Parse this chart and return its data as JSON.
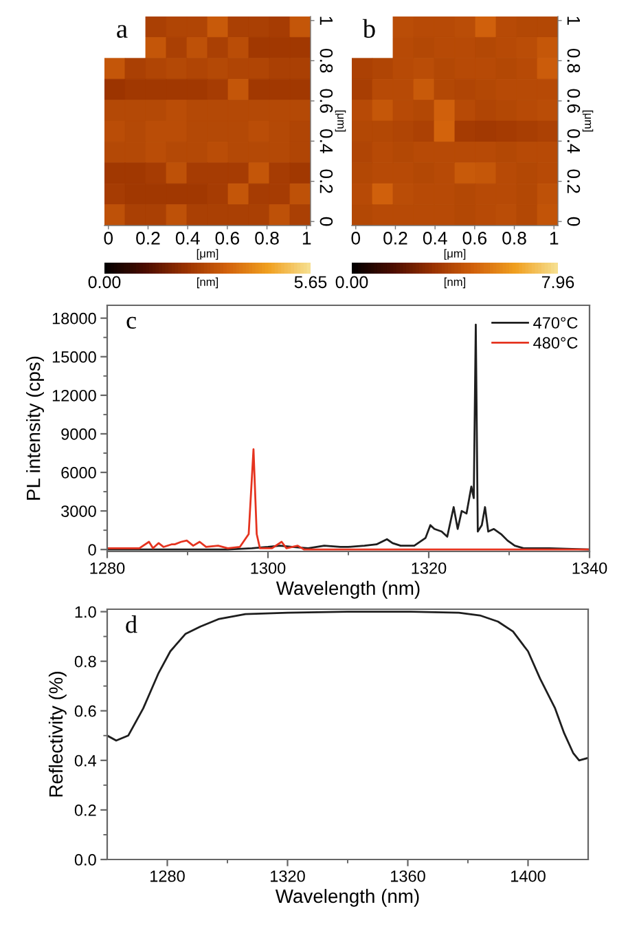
{
  "chart_data": [
    {
      "type": "heatmap",
      "title": "a",
      "xlabel": "[μm]",
      "ylabel": "[μm]",
      "clabel": "[nm]",
      "xlim": [
        -0.02,
        1.02
      ],
      "xticks": [
        0,
        0.2,
        0.4,
        0.6,
        0.8,
        1
      ],
      "ylim": [
        -0.02,
        1.02
      ],
      "yticks": [
        0,
        0.2,
        0.4,
        0.6,
        0.8,
        1
      ],
      "clim": [
        0,
        5.65
      ],
      "cticks": [
        {
          "value": 0,
          "label": "0.00"
        },
        5.65
      ],
      "cells": [
        [
          null,
          null,
          2.6,
          2.7,
          2.7,
          3.2,
          2.6,
          2.6,
          2.5,
          3.1
        ],
        [
          null,
          null,
          3.1,
          2.6,
          3.0,
          2.6,
          2.9,
          2.4,
          2.4,
          2.4
        ],
        [
          3.1,
          2.6,
          2.7,
          2.8,
          2.7,
          2.8,
          2.7,
          2.7,
          2.6,
          2.6
        ],
        [
          2.3,
          2.4,
          2.4,
          2.4,
          2.4,
          2.5,
          3.1,
          2.4,
          2.4,
          2.4
        ],
        [
          2.8,
          2.8,
          2.8,
          2.9,
          2.8,
          2.8,
          2.8,
          2.8,
          2.8,
          2.8
        ],
        [
          2.9,
          2.8,
          2.9,
          2.9,
          2.8,
          2.8,
          2.8,
          2.9,
          2.8,
          2.7
        ],
        [
          2.8,
          2.8,
          2.9,
          2.8,
          2.8,
          2.9,
          2.8,
          2.8,
          2.8,
          2.7
        ],
        [
          2.4,
          2.4,
          2.5,
          3.0,
          2.5,
          2.5,
          2.5,
          3.1,
          2.5,
          2.4
        ],
        [
          2.5,
          2.4,
          2.4,
          2.4,
          2.4,
          2.5,
          3.1,
          2.5,
          2.5,
          3.0
        ],
        [
          3.0,
          2.6,
          2.6,
          3.0,
          2.6,
          2.6,
          2.6,
          2.6,
          3.0,
          2.6
        ]
      ]
    },
    {
      "type": "heatmap",
      "title": "b",
      "xlabel": "[μm]",
      "ylabel": "[μm]",
      "clabel": "[nm]",
      "xlim": [
        -0.02,
        1.02
      ],
      "xticks": [
        0,
        0.2,
        0.4,
        0.6,
        0.8,
        1
      ],
      "ylim": [
        -0.02,
        1.02
      ],
      "yticks": [
        0,
        0.2,
        0.4,
        0.6,
        0.8,
        1
      ],
      "clim": [
        0,
        7.96
      ],
      "cticks": [
        {
          "value": 0,
          "label": "0.00"
        },
        7.96
      ],
      "cells": [
        [
          null,
          null,
          4.1,
          4.0,
          4.0,
          4.1,
          4.7,
          4.0,
          3.9,
          3.9
        ],
        [
          null,
          null,
          4.0,
          3.9,
          4.0,
          4.0,
          3.9,
          4.0,
          4.1,
          4.4
        ],
        [
          3.7,
          3.8,
          4.0,
          4.1,
          3.9,
          4.0,
          4.0,
          3.9,
          4.0,
          4.6
        ],
        [
          3.6,
          4.0,
          4.0,
          4.5,
          3.9,
          3.8,
          3.9,
          4.0,
          4.0,
          4.0
        ],
        [
          4.0,
          4.4,
          4.0,
          3.9,
          4.7,
          4.0,
          3.8,
          3.9,
          4.0,
          4.1
        ],
        [
          3.9,
          3.9,
          3.8,
          3.7,
          4.8,
          3.5,
          3.4,
          3.5,
          3.6,
          3.7
        ],
        [
          3.8,
          4.0,
          3.9,
          4.0,
          4.0,
          4.0,
          4.0,
          3.9,
          4.0,
          4.0
        ],
        [
          3.9,
          4.0,
          4.0,
          3.9,
          4.0,
          4.5,
          4.4,
          4.0,
          3.9,
          4.0
        ],
        [
          4.0,
          4.7,
          4.1,
          4.0,
          4.0,
          3.9,
          4.0,
          4.0,
          3.9,
          4.2
        ],
        [
          3.9,
          4.0,
          4.0,
          4.0,
          4.0,
          3.9,
          4.0,
          4.1,
          3.9,
          4.3
        ]
      ]
    },
    {
      "type": "line",
      "title": "c",
      "xlabel": "Wavelength (nm)",
      "ylabel": "PL intensity (cps)",
      "xlim": [
        1280,
        1340
      ],
      "xticks": [
        1280,
        {
          "value": 1290,
          "label": null
        },
        1300,
        {
          "value": 1310,
          "label": null
        },
        1320,
        {
          "value": 1330,
          "label": null
        },
        1340
      ],
      "ylim": [
        -150,
        19000
      ],
      "yticks": [
        0,
        {
          "value": 1500,
          "label": null
        },
        3000,
        {
          "value": 4500,
          "label": null
        },
        6000,
        {
          "value": 7500,
          "label": null
        },
        9000,
        {
          "value": 10500,
          "label": null
        },
        12000,
        {
          "value": 13500,
          "label": null
        },
        15000,
        {
          "value": 16500,
          "label": null
        },
        18000
      ],
      "legend": "top right",
      "series": [
        {
          "name": "470°C",
          "color": "#1e1e1e",
          "x": [
            1280,
            1285,
            1290,
            1295,
            1298,
            1300,
            1301.5,
            1303,
            1305,
            1307,
            1309,
            1310,
            1312,
            1313.5,
            1314.8,
            1315.5,
            1316.5,
            1318.2,
            1319.6,
            1320.2,
            1320.7,
            1321.6,
            1322.3,
            1323.1,
            1323.6,
            1324.1,
            1324.7,
            1325.3,
            1325.6,
            1325.85,
            1326.1,
            1326.6,
            1327,
            1327.4,
            1328.1,
            1329,
            1329.8,
            1330.7,
            1331.8,
            1335,
            1340
          ],
          "values": [
            0,
            0,
            0,
            0,
            100,
            200,
            300,
            200,
            100,
            300,
            200,
            200,
            300,
            400,
            800,
            500,
            300,
            300,
            900,
            1900,
            1600,
            1400,
            1000,
            3300,
            1600,
            3000,
            2800,
            4900,
            4000,
            17500,
            1400,
            1900,
            3300,
            1400,
            1600,
            1200,
            700,
            300,
            100,
            100,
            0
          ]
        },
        {
          "name": "480°C",
          "color": "#e5331f",
          "x": [
            1280,
            1282,
            1284,
            1285.2,
            1285.7,
            1286.4,
            1287,
            1288,
            1288.4,
            1289.2,
            1289.9,
            1290.7,
            1291.5,
            1292.3,
            1293.8,
            1295,
            1296.5,
            1297.6,
            1298.2,
            1298.6,
            1299,
            1300.5,
            1301.7,
            1302.3,
            1303.7,
            1304.5,
            1306,
            1310,
            1320,
            1330,
            1340
          ],
          "values": [
            100,
            100,
            100,
            600,
            100,
            500,
            200,
            400,
            400,
            600,
            700,
            300,
            600,
            200,
            300,
            100,
            200,
            1200,
            7800,
            1200,
            100,
            100,
            600,
            100,
            300,
            0,
            0,
            0,
            0,
            0,
            0
          ]
        }
      ]
    },
    {
      "type": "line",
      "title": "d",
      "xlabel": "Wavelength (nm)",
      "ylabel": "Reflectivity (%)",
      "xlim": [
        1260,
        1420
      ],
      "xticks": [
        1280,
        {
          "value": 1300,
          "label": null
        },
        1320,
        {
          "value": 1340,
          "label": null
        },
        1360,
        {
          "value": 1380,
          "label": null
        },
        1400
      ],
      "ylim": [
        0,
        1.01
      ],
      "yticks": [
        {
          "value": 0,
          "label": "0.0"
        },
        {
          "value": 0.1,
          "label": null
        },
        0.2,
        {
          "value": 0.3,
          "label": null
        },
        0.4,
        {
          "value": 0.5,
          "label": null
        },
        0.6,
        {
          "value": 0.7,
          "label": null
        },
        0.8,
        {
          "value": 0.9,
          "label": null
        },
        {
          "value": 1,
          "label": "1.0"
        }
      ],
      "series": [
        {
          "color": "#1e1e1e",
          "x": [
            1260,
            1263,
            1267,
            1272,
            1277,
            1281,
            1286,
            1291,
            1297,
            1306,
            1320,
            1340,
            1361,
            1377,
            1384,
            1390,
            1395,
            1400,
            1404,
            1409,
            1412,
            1415,
            1417,
            1420
          ],
          "values": [
            0.5,
            0.48,
            0.5,
            0.61,
            0.75,
            0.84,
            0.91,
            0.94,
            0.97,
            0.99,
            0.996,
            1.0,
            1.0,
            0.996,
            0.985,
            0.96,
            0.92,
            0.84,
            0.73,
            0.61,
            0.51,
            0.43,
            0.4,
            0.41
          ]
        }
      ]
    }
  ]
}
